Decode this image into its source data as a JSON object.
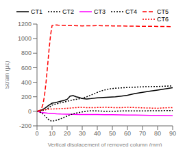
{
  "chart_data": {
    "type": "line",
    "title": "",
    "xlabel": "Vertical displacement of removed column (mm)",
    "ylabel": "Strain (με)",
    "xlim": [
      0,
      90
    ],
    "ylim": [
      -200,
      1200
    ],
    "xticks": [
      0,
      10,
      20,
      30,
      40,
      50,
      60,
      70,
      80,
      90
    ],
    "yticks": [
      -200,
      0,
      200,
      400,
      600,
      800,
      1000,
      1200
    ],
    "legend": "upper right",
    "series": [
      {
        "name": "CT1",
        "color": "#000000",
        "line_style": "solid",
        "x": [
          0,
          1,
          2,
          3,
          4,
          5,
          6,
          7,
          8,
          9,
          10,
          12,
          14,
          16,
          18,
          20,
          22,
          24,
          26,
          28,
          30,
          33,
          36,
          40,
          44,
          48,
          52,
          56,
          60,
          65,
          70,
          75,
          80,
          85,
          90
        ],
        "values": [
          0,
          5,
          10,
          18,
          28,
          40,
          55,
          70,
          85,
          100,
          112,
          120,
          130,
          140,
          150,
          165,
          210,
          215,
          200,
          190,
          175,
          170,
          175,
          185,
          190,
          195,
          200,
          210,
          220,
          245,
          262,
          278,
          292,
          308,
          325
        ]
      },
      {
        "name": "CT2",
        "color": "#000000",
        "line_style": "dotted",
        "x": [
          0,
          1,
          2,
          3,
          4,
          5,
          6,
          7,
          8,
          9,
          10,
          12,
          14,
          16,
          18,
          20,
          22,
          24,
          27,
          30,
          33,
          36,
          40,
          44,
          48,
          52,
          56,
          60,
          65,
          70,
          75,
          80,
          85,
          90
        ],
        "values": [
          0,
          2,
          5,
          8,
          12,
          18,
          25,
          38,
          52,
          68,
          85,
          98,
          108,
          118,
          128,
          138,
          148,
          158,
          168,
          180,
          200,
          225,
          260,
          290,
          308,
          318,
          322,
          328,
          332,
          337,
          340,
          342,
          346,
          350
        ]
      },
      {
        "name": "CT3",
        "color": "#ff00ff",
        "line_style": "solid",
        "x": [
          0,
          1,
          2,
          3,
          5,
          7,
          10,
          13,
          16,
          20,
          24,
          28,
          32,
          36,
          40,
          45,
          50,
          55,
          60,
          65,
          70,
          75,
          80,
          85,
          90
        ],
        "values": [
          0,
          -5,
          -10,
          -15,
          -20,
          -25,
          -30,
          -35,
          -38,
          -40,
          -42,
          -43,
          -44,
          -44,
          -45,
          -46,
          -47,
          -48,
          -50,
          -52,
          -53,
          -55,
          -56,
          -58,
          -60
        ]
      },
      {
        "name": "CT4",
        "color": "#000000",
        "line_style": "dotted",
        "x": [
          0,
          1,
          2,
          3,
          4,
          5,
          6,
          7,
          8,
          9,
          10,
          12,
          14,
          16,
          18,
          20,
          22,
          24,
          27,
          30,
          33,
          36,
          40,
          44,
          48,
          52,
          56,
          60,
          65,
          70,
          75,
          80,
          85,
          90
        ],
        "values": [
          0,
          -5,
          -12,
          -22,
          -38,
          -58,
          -80,
          -100,
          -118,
          -130,
          -135,
          -128,
          -115,
          -100,
          -82,
          -65,
          -48,
          -35,
          -20,
          -8,
          2,
          8,
          5,
          2,
          0,
          2,
          5,
          5,
          5,
          5,
          8,
          8,
          10,
          10
        ]
      },
      {
        "name": "CT5",
        "color": "#ff0000",
        "line_style": "dashed",
        "x": [
          0,
          1,
          2,
          3,
          4,
          5,
          6,
          7,
          8,
          9,
          10,
          12,
          14,
          20,
          30,
          40,
          50,
          60,
          70,
          80,
          90
        ],
        "values": [
          0,
          5,
          15,
          40,
          100,
          220,
          400,
          620,
          850,
          1050,
          1180,
          1190,
          1185,
          1180,
          1175,
          1178,
          1175,
          1172,
          1170,
          1168,
          1165
        ]
      },
      {
        "name": "CT6",
        "color": "#ff0000",
        "line_style": "dotted",
        "x": [
          0,
          1,
          2,
          3,
          5,
          7,
          10,
          13,
          16,
          20,
          24,
          28,
          32,
          36,
          40,
          45,
          50,
          55,
          60,
          65,
          70,
          75,
          80,
          85,
          90
        ],
        "values": [
          0,
          3,
          8,
          15,
          22,
          28,
          32,
          35,
          38,
          42,
          48,
          55,
          52,
          50,
          52,
          55,
          52,
          50,
          55,
          52,
          48,
          45,
          42,
          48,
          52
        ]
      }
    ]
  }
}
